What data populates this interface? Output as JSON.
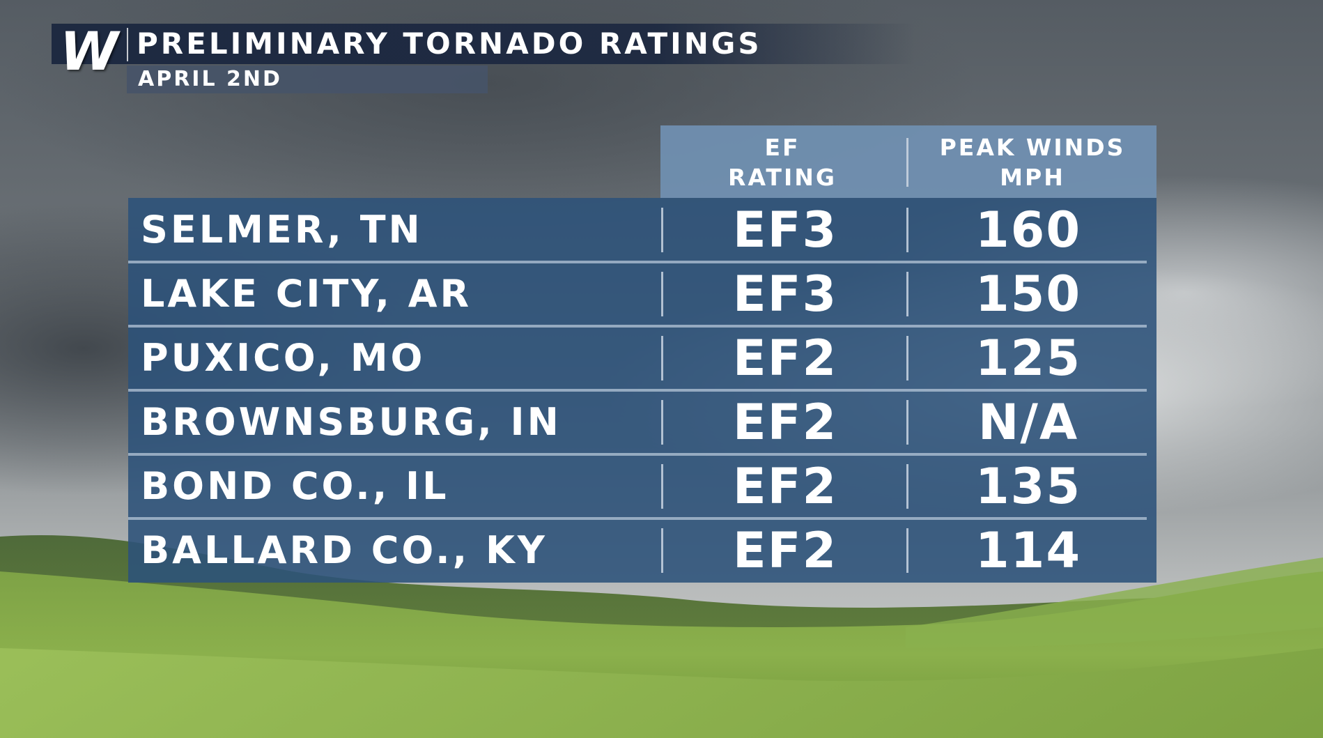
{
  "header": {
    "logo_letter": "W",
    "title": "PRELIMINARY TORNADO RATINGS",
    "subtitle": "APRIL 2ND"
  },
  "table": {
    "columns": {
      "rating": {
        "line1": "EF",
        "line2": "RATING"
      },
      "winds": {
        "line1": "PEAK WINDS",
        "line2": "MPH"
      }
    },
    "rows": [
      {
        "location": "SELMER, TN",
        "rating": "EF3",
        "winds": "160"
      },
      {
        "location": "LAKE CITY, AR",
        "rating": "EF3",
        "winds": "150"
      },
      {
        "location": "PUXICO, MO",
        "rating": "EF2",
        "winds": "125"
      },
      {
        "location": "BROWNSBURG, IN",
        "rating": "EF2",
        "winds": "N/A"
      },
      {
        "location": "BOND CO., IL",
        "rating": "EF2",
        "winds": "135"
      },
      {
        "location": "BALLARD CO., KY",
        "rating": "EF2",
        "winds": "114"
      }
    ]
  },
  "colors": {
    "title_bar": "#1c2840",
    "header_bg": "#7090b2",
    "table_bg": "#2c527a",
    "text": "#ffffff"
  }
}
